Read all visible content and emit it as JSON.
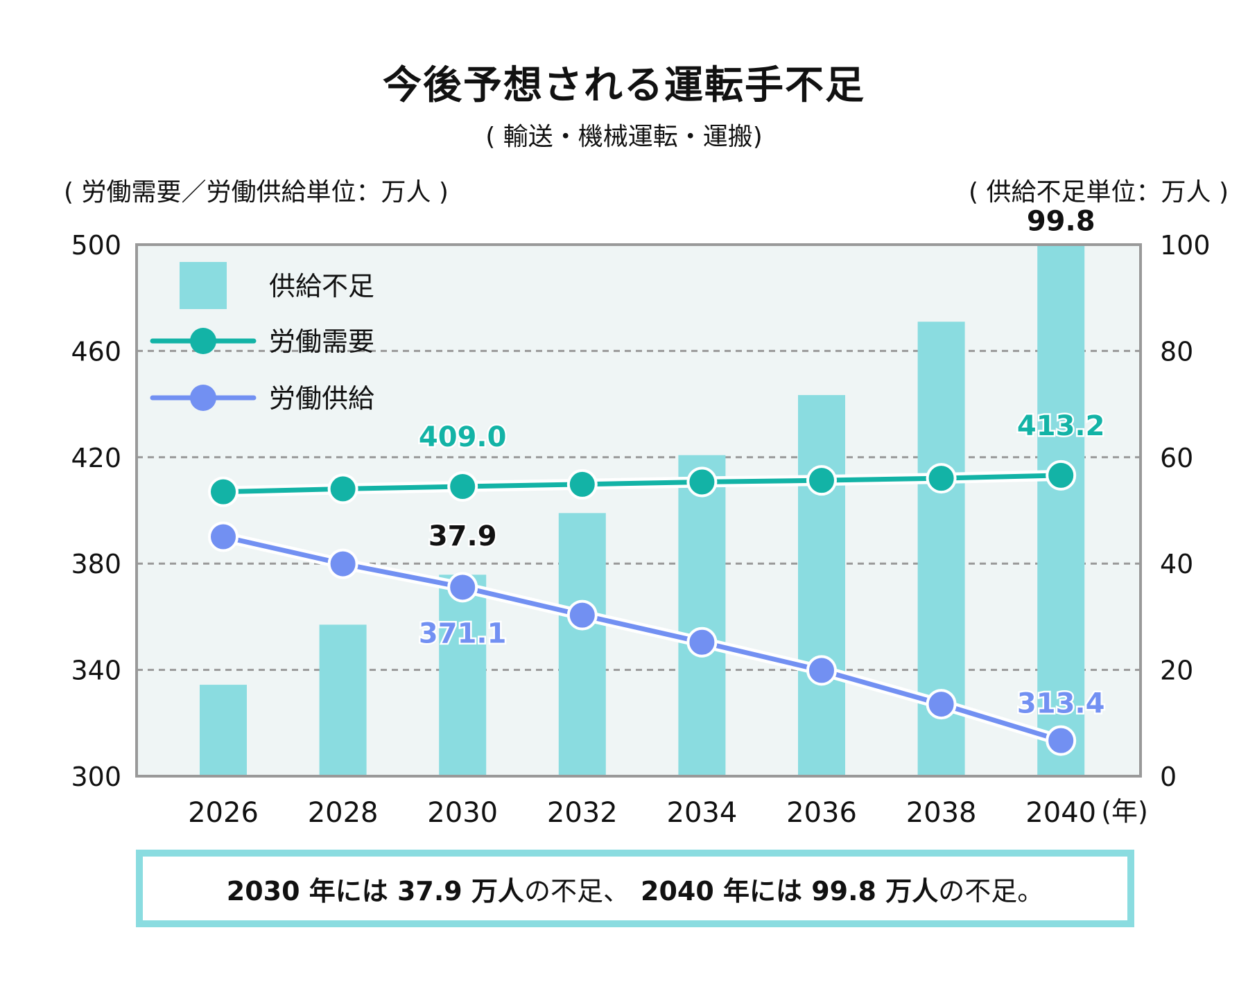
{
  "header": {
    "title": "今後予想される運転手不足",
    "subtitle": "( 輸送・機械運転・運搬)",
    "unit_left": "( 労働需要／労働供給単位：万人 )",
    "unit_right": "( 供給不足単位：万人 )"
  },
  "colors": {
    "bar": "#8adce0",
    "demand": "#13b3a6",
    "supply": "#7290f2",
    "plot_bg": "#eff5f5",
    "frame": "#999999",
    "grid": "#999999"
  },
  "chart_data": {
    "type": "bar+line",
    "title": "今後予想される運転手不足",
    "subtitle": "( 輸送・機械運転・運搬)",
    "categories": [
      "2026",
      "2028",
      "2030",
      "2032",
      "2034",
      "2036",
      "2038",
      "2040"
    ],
    "x_unit_label": "(年)",
    "left_axis": {
      "label": "( 労働需要／労働供給単位：万人 )",
      "range": [
        300,
        500
      ],
      "ticks": [
        300,
        340,
        380,
        420,
        460,
        500
      ]
    },
    "right_axis": {
      "label": "( 供給不足単位：万人 )",
      "range": [
        0,
        100
      ],
      "ticks": [
        0,
        20,
        40,
        60,
        80,
        100
      ]
    },
    "grid": true,
    "legend_position": "top-left",
    "series": [
      {
        "name": "供給不足",
        "type": "bar",
        "axis": "right",
        "values": [
          17.2,
          28.5,
          37.9,
          49.5,
          60.4,
          71.7,
          85.5,
          99.8
        ]
      },
      {
        "name": "労働需要",
        "type": "line",
        "axis": "left",
        "values": [
          407.0,
          408.1,
          409.0,
          409.8,
          410.7,
          411.3,
          412.1,
          413.2
        ]
      },
      {
        "name": "労働供給",
        "type": "line",
        "axis": "left",
        "values": [
          390.1,
          379.9,
          371.1,
          360.6,
          350.4,
          339.8,
          327.1,
          313.4
        ]
      }
    ],
    "annotations": [
      {
        "text": "409.0",
        "series": "労働需要",
        "category": "2030",
        "color_key": "demand"
      },
      {
        "text": "413.2",
        "series": "労働需要",
        "category": "2040",
        "color_key": "demand"
      },
      {
        "text": "37.9",
        "series": "供給不足",
        "category": "2030",
        "color_key": "text"
      },
      {
        "text": "99.8",
        "series": "供給不足",
        "category": "2040",
        "color_key": "text"
      },
      {
        "text": "371.1",
        "series": "労働供給",
        "category": "2030",
        "color_key": "supply"
      },
      {
        "text": "313.4",
        "series": "労働供給",
        "category": "2040",
        "color_key": "supply"
      }
    ]
  },
  "banner": {
    "part1_bold": "2030 年には 37.9 万人",
    "part1_rest": "の不足、",
    "part2_bold": "2040 年には 99.8 万人",
    "part2_rest": "の不足。"
  }
}
